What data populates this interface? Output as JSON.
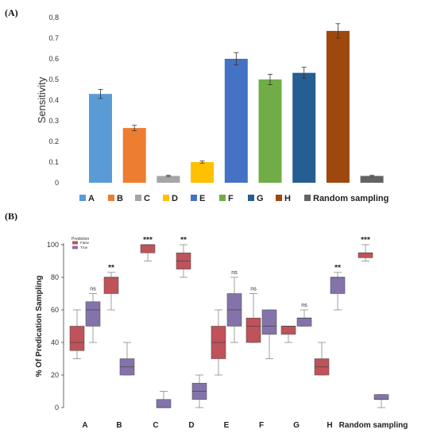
{
  "panel_a": {
    "label": "(A)"
  },
  "panel_b": {
    "label": "(B)"
  },
  "chart_data": [
    {
      "type": "bar",
      "title": "",
      "xlabel": "",
      "ylabel": "Sensitivity",
      "ylim": [
        0,
        0.8
      ],
      "yticks": [
        "0",
        "0.1",
        "0.2",
        "0.3",
        "0.4",
        "0.5",
        "0.6",
        "0.7",
        "0.8"
      ],
      "categories": [
        "A",
        "B",
        "C",
        "D",
        "E",
        "F",
        "G",
        "H",
        "Random sampling"
      ],
      "values": [
        0.43,
        0.265,
        0.033,
        0.1,
        0.6,
        0.5,
        0.532,
        0.735,
        0.033
      ],
      "errors": [
        0.022,
        0.013,
        0.003,
        0.005,
        0.03,
        0.025,
        0.027,
        0.035,
        0.003
      ],
      "colors": [
        "#5b9bd5",
        "#ed7d31",
        "#a5a5a5",
        "#ffc000",
        "#4472c4",
        "#70ad47",
        "#255e91",
        "#9e480e",
        "#636363"
      ],
      "grid": false,
      "legend": "bottom"
    },
    {
      "type": "box",
      "title": "",
      "xlabel": "",
      "ylabel": "% Of Predication Sampling",
      "ylim": [
        0,
        100
      ],
      "yticks": [
        "0",
        "20",
        "40",
        "60",
        "80",
        "100"
      ],
      "categories": [
        "A",
        "B",
        "C",
        "D",
        "E",
        "F",
        "G",
        "H",
        "Random sampling"
      ],
      "legend": {
        "title": "Prediction",
        "position": "top-left"
      },
      "series": [
        {
          "name": "False",
          "color": "#c0525a",
          "boxes": [
            [
              30,
              35,
              40,
              50,
              60
            ],
            [
              60,
              70,
              80,
              80,
              83
            ],
            [
              90,
              95,
              100,
              100,
              100
            ],
            [
              80,
              85,
              90,
              95,
              100
            ],
            [
              20,
              30,
              40,
              50,
              60
            ],
            [
              40,
              40,
              50,
              55,
              70
            ],
            [
              40,
              45,
              50,
              50,
              50
            ],
            [
              20,
              20,
              25,
              30,
              40
            ],
            [
              90,
              92,
              95,
              95,
              100
            ]
          ]
        },
        {
          "name": "True",
          "color": "#8473ab",
          "boxes": [
            [
              40,
              50,
              60,
              65,
              70
            ],
            [
              20,
              20,
              25,
              30,
              40
            ],
            [
              0,
              0,
              0,
              5,
              10
            ],
            [
              0,
              5,
              10,
              15,
              20
            ],
            [
              40,
              50,
              60,
              70,
              80
            ],
            [
              30,
              45,
              50,
              60,
              60
            ],
            [
              50,
              50,
              55,
              55,
              60
            ],
            [
              60,
              70,
              80,
              80,
              83
            ],
            [
              0,
              5,
              5,
              8,
              8
            ]
          ]
        }
      ],
      "significance": [
        "ns",
        "**",
        "***",
        "**",
        "ns",
        "ns",
        "ns",
        "**",
        "***"
      ]
    }
  ]
}
